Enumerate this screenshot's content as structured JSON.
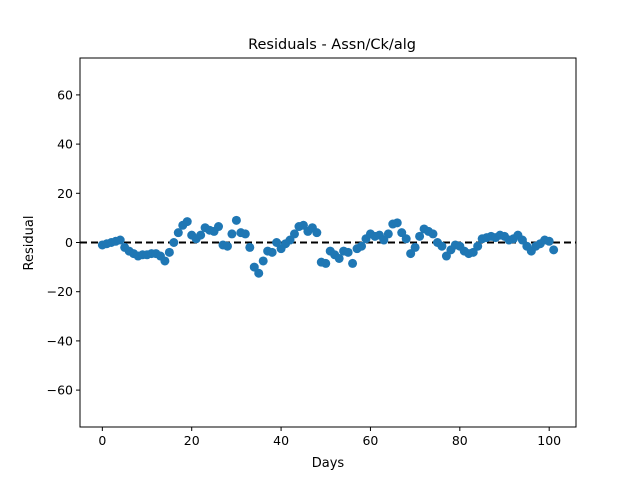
{
  "chart_data": {
    "type": "scatter",
    "title": "Residuals - Assn/Ck/alg",
    "xlabel": "Days",
    "ylabel": "Residual",
    "xlim": [
      -5,
      106
    ],
    "ylim": [
      -75,
      75
    ],
    "xticks": [
      0,
      20,
      40,
      60,
      80,
      100
    ],
    "yticks": [
      -60,
      -40,
      -20,
      0,
      20,
      40,
      60
    ],
    "grid": false,
    "reference_line": {
      "y": 0,
      "style": "dashed",
      "color": "#000000"
    },
    "marker_color": "#1f77b4",
    "series": [
      {
        "x": [
          0,
          1,
          2,
          3,
          4,
          5,
          6,
          7,
          8,
          9,
          10,
          11,
          12,
          13,
          14,
          15,
          16,
          17,
          18,
          19,
          20,
          21,
          22,
          23,
          24,
          25,
          26,
          27,
          28,
          29,
          30,
          31,
          32,
          33,
          34,
          35,
          36,
          37,
          38,
          39,
          40,
          41,
          42,
          43,
          44,
          45,
          46,
          47,
          48,
          49,
          50,
          51,
          52,
          53,
          54,
          55,
          56,
          57,
          58,
          59,
          60,
          61,
          62,
          63,
          64,
          65,
          66,
          67,
          68,
          69,
          70,
          71,
          72,
          73,
          74,
          75,
          76,
          77,
          78,
          79,
          80,
          81,
          82,
          83,
          84,
          85,
          86,
          87,
          88,
          89,
          90,
          91,
          92,
          93,
          94,
          95,
          96,
          97,
          98,
          99,
          100,
          101
        ],
        "y": [
          -1,
          -0.5,
          0,
          0.5,
          1,
          -2,
          -3.5,
          -4.5,
          -5.5,
          -5,
          -5,
          -4.5,
          -4.5,
          -5.5,
          -7.5,
          -4,
          0,
          4,
          7,
          8.5,
          3,
          1.5,
          3,
          6,
          5,
          4.5,
          6.5,
          -1,
          -1.5,
          3.5,
          9,
          4,
          3.5,
          -2,
          -10,
          -12.5,
          -7.5,
          -3.5,
          -4,
          0,
          -2.5,
          -0.5,
          1,
          3.5,
          6.5,
          7,
          4.5,
          6,
          4,
          -8,
          -8.5,
          -3.5,
          -5,
          -6.5,
          -3.5,
          -4,
          -8.5,
          -2.5,
          -1.5,
          1.5,
          3.5,
          2.5,
          3,
          1,
          3.5,
          7.5,
          8,
          4,
          1.5,
          -4.5,
          -2,
          2.5,
          5.5,
          4.5,
          3.5,
          0,
          -1.5,
          -5.5,
          -3,
          -1,
          -1.5,
          -3.5,
          -4.5,
          -4,
          -1.5,
          1.5,
          2,
          2.5,
          2,
          3,
          2.5,
          1,
          1.5,
          3,
          1,
          -1.5,
          -3.5,
          -1.5,
          -0.5,
          1,
          0.5,
          -3
        ]
      }
    ]
  }
}
